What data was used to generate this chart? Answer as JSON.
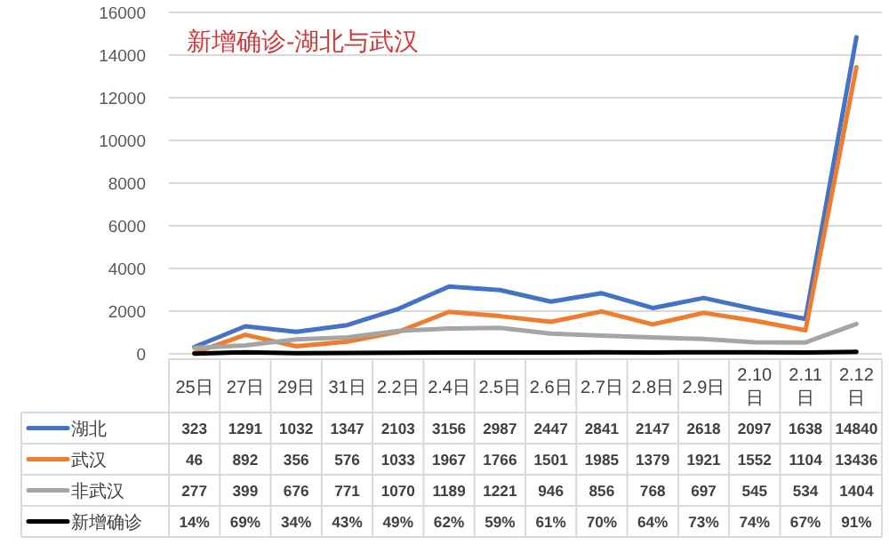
{
  "chart_data": {
    "type": "line",
    "title": "新增确诊-湖北与武汉",
    "categories": [
      "25日",
      "27日",
      "29日",
      "31日",
      "2.2日",
      "2.4日",
      "2.5日",
      "2.6日",
      "2.7日",
      "2.8日",
      "2.9日",
      "2.10日",
      "2.11日",
      "2.12日"
    ],
    "series": [
      {
        "name": "湖北",
        "color": "#4472c4",
        "values": [
          323,
          1291,
          1032,
          1347,
          2103,
          3156,
          2987,
          2447,
          2841,
          2147,
          2618,
          2097,
          1638,
          14840
        ],
        "value_labels": [
          "323",
          "1291",
          "1032",
          "1347",
          "2103",
          "3156",
          "2987",
          "2447",
          "2841",
          "2147",
          "2618",
          "2097",
          "1638",
          "14840"
        ]
      },
      {
        "name": "武汉",
        "color": "#ed7d31",
        "values": [
          46,
          892,
          356,
          576,
          1033,
          1967,
          1766,
          1501,
          1985,
          1379,
          1921,
          1552,
          1104,
          13436
        ],
        "value_labels": [
          "46",
          "892",
          "356",
          "576",
          "1033",
          "1967",
          "1766",
          "1501",
          "1985",
          "1379",
          "1921",
          "1552",
          "1104",
          "13436"
        ]
      },
      {
        "name": "非武汉",
        "color": "#a5a5a5",
        "values": [
          277,
          399,
          676,
          771,
          1070,
          1189,
          1221,
          946,
          856,
          768,
          697,
          545,
          534,
          1404
        ],
        "value_labels": [
          "277",
          "399",
          "676",
          "771",
          "1070",
          "1189",
          "1221",
          "946",
          "856",
          "768",
          "697",
          "545",
          "534",
          "1404"
        ]
      },
      {
        "name": "新增确诊",
        "color": "#000000",
        "values": [
          14,
          69,
          34,
          43,
          49,
          62,
          59,
          61,
          70,
          64,
          73,
          74,
          67,
          91
        ],
        "value_labels": [
          "14%",
          "69%",
          "34%",
          "43%",
          "49%",
          "62%",
          "59%",
          "61%",
          "70%",
          "64%",
          "73%",
          "74%",
          "67%",
          "91%"
        ]
      }
    ],
    "ylim": [
      0,
      16000
    ],
    "yticks": [
      0,
      2000,
      4000,
      6000,
      8000,
      10000,
      12000,
      14000,
      16000
    ],
    "grid": "y",
    "legend": "bottom",
    "line_style": "solid"
  }
}
